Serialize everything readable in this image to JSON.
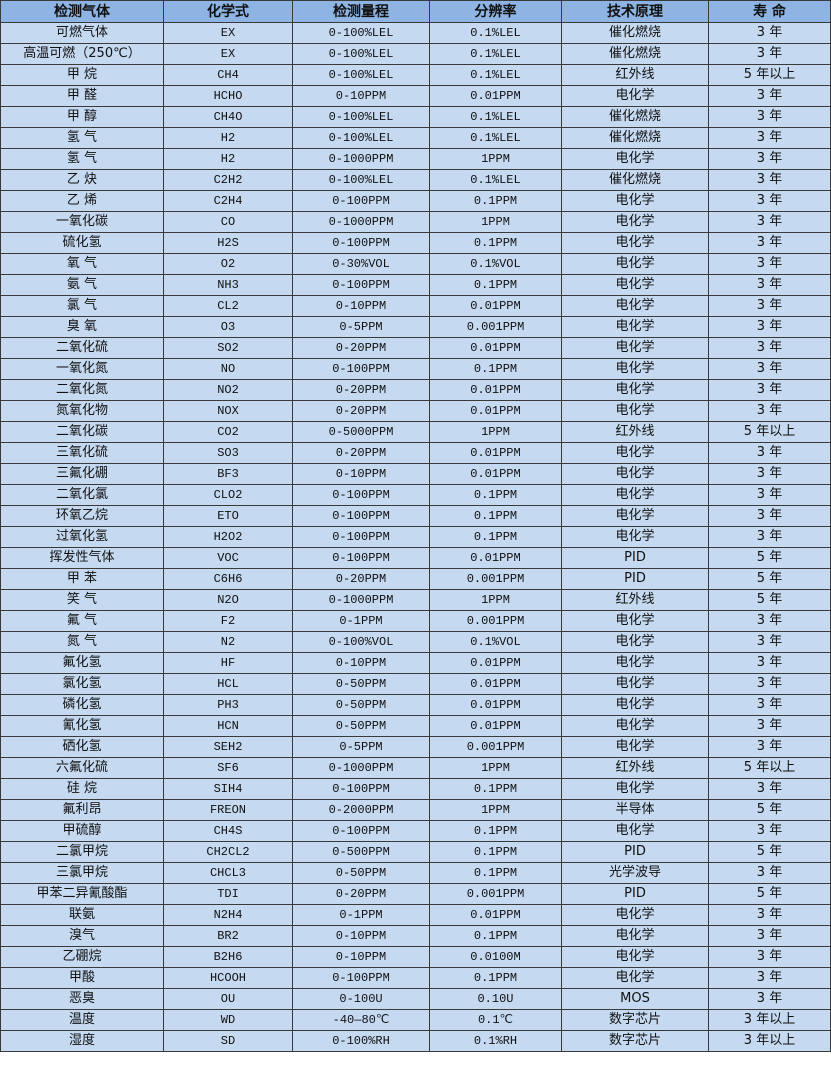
{
  "colors": {
    "header_bg": "#8db4e2",
    "row_bg": "#c5d9f1",
    "border": "#3a3a3a"
  },
  "table": {
    "headers": [
      "检测气体",
      "化学式",
      "检测量程",
      "分辨率",
      "技术原理",
      "寿 命"
    ],
    "rows": [
      [
        "可燃气体",
        "EX",
        "0-100%LEL",
        "0.1%LEL",
        "催化燃烧",
        "3 年"
      ],
      [
        "高温可燃（250℃）",
        "EX",
        "0-100%LEL",
        "0.1%LEL",
        "催化燃烧",
        "3 年"
      ],
      [
        "甲 烷",
        "CH4",
        "0-100%LEL",
        "0.1%LEL",
        "红外线",
        "5 年以上"
      ],
      [
        "甲 醛",
        "HCHO",
        "0-10PPM",
        "0.01PPM",
        "电化学",
        "3 年"
      ],
      [
        "甲 醇",
        "CH4O",
        "0-100%LEL",
        "0.1%LEL",
        "催化燃烧",
        "3 年"
      ],
      [
        "氢 气",
        "H2",
        "0-100%LEL",
        "0.1%LEL",
        "催化燃烧",
        "3 年"
      ],
      [
        "氢 气",
        "H2",
        "0-1000PPM",
        "1PPM",
        "电化学",
        "3 年"
      ],
      [
        "乙 炔",
        "C2H2",
        "0-100%LEL",
        "0.1%LEL",
        "催化燃烧",
        "3 年"
      ],
      [
        "乙 烯",
        "C2H4",
        "0-100PPM",
        "0.1PPM",
        "电化学",
        "3 年"
      ],
      [
        "一氧化碳",
        "CO",
        "0-1000PPM",
        "1PPM",
        "电化学",
        "3 年"
      ],
      [
        "硫化氢",
        "H2S",
        "0-100PPM",
        "0.1PPM",
        "电化学",
        "3 年"
      ],
      [
        "氧 气",
        "O2",
        "0-30%VOL",
        "0.1%VOL",
        "电化学",
        "3 年"
      ],
      [
        "氨 气",
        "NH3",
        "0-100PPM",
        "0.1PPM",
        "电化学",
        "3 年"
      ],
      [
        "氯 气",
        "CL2",
        "0-10PPM",
        "0.01PPM",
        "电化学",
        "3 年"
      ],
      [
        "臭 氧",
        "O3",
        "0-5PPM",
        "0.001PPM",
        "电化学",
        "3 年"
      ],
      [
        "二氧化硫",
        "SO2",
        "0-20PPM",
        "0.01PPM",
        "电化学",
        "3 年"
      ],
      [
        "一氧化氮",
        "NO",
        "0-100PPM",
        "0.1PPM",
        "电化学",
        "3 年"
      ],
      [
        "二氧化氮",
        "NO2",
        "0-20PPM",
        "0.01PPM",
        "电化学",
        "3 年"
      ],
      [
        "氮氧化物",
        "NOX",
        "0-20PPM",
        "0.01PPM",
        "电化学",
        "3 年"
      ],
      [
        "二氧化碳",
        "CO2",
        "0-5000PPM",
        "1PPM",
        "红外线",
        "5 年以上"
      ],
      [
        "三氧化硫",
        "SO3",
        "0-20PPM",
        "0.01PPM",
        "电化学",
        "3 年"
      ],
      [
        "三氟化硼",
        "BF3",
        "0-10PPM",
        "0.01PPM",
        "电化学",
        "3 年"
      ],
      [
        "二氧化氯",
        "CLO2",
        "0-100PPM",
        "0.1PPM",
        "电化学",
        "3 年"
      ],
      [
        "环氧乙烷",
        "ETO",
        "0-100PPM",
        "0.1PPM",
        "电化学",
        "3 年"
      ],
      [
        "过氧化氢",
        "H2O2",
        "0-100PPM",
        "0.1PPM",
        "电化学",
        "3 年"
      ],
      [
        "挥发性气体",
        "VOC",
        "0-100PPM",
        "0.01PPM",
        "PID",
        "5 年"
      ],
      [
        "甲 苯",
        "C6H6",
        "0-20PPM",
        "0.001PPM",
        "PID",
        "5 年"
      ],
      [
        "笑 气",
        "N2O",
        "0-1000PPM",
        "1PPM",
        "红外线",
        "5 年"
      ],
      [
        "氟 气",
        "F2",
        "0-1PPM",
        "0.001PPM",
        "电化学",
        "3 年"
      ],
      [
        "氮 气",
        "N2",
        "0-100%VOL",
        "0.1%VOL",
        "电化学",
        "3 年"
      ],
      [
        "氟化氢",
        "HF",
        "0-10PPM",
        "0.01PPM",
        "电化学",
        "3 年"
      ],
      [
        "氯化氢",
        "HCL",
        "0-50PPM",
        "0.01PPM",
        "电化学",
        "3 年"
      ],
      [
        "磷化氢",
        "PH3",
        "0-50PPM",
        "0.01PPM",
        "电化学",
        "3 年"
      ],
      [
        "氰化氢",
        "HCN",
        "0-50PPM",
        "0.01PPM",
        "电化学",
        "3 年"
      ],
      [
        "硒化氢",
        "SEH2",
        "0-5PPM",
        "0.001PPM",
        "电化学",
        "3 年"
      ],
      [
        "六氟化硫",
        "SF6",
        "0-1000PPM",
        "1PPM",
        "红外线",
        "5 年以上"
      ],
      [
        "硅 烷",
        "SIH4",
        "0-100PPM",
        "0.1PPM",
        "电化学",
        "3 年"
      ],
      [
        "氟利昂",
        "FREON",
        "0-2000PPM",
        "1PPM",
        "半导体",
        "5 年"
      ],
      [
        "甲硫醇",
        "CH4S",
        "0-100PPM",
        "0.1PPM",
        "电化学",
        "3 年"
      ],
      [
        "二氯甲烷",
        "CH2CL2",
        "0-500PPM",
        "0.1PPM",
        "PID",
        "5 年"
      ],
      [
        "三氯甲烷",
        "CHCL3",
        "0-50PPM",
        "0.1PPM",
        "光学波导",
        "3 年"
      ],
      [
        "甲苯二异氰酸酯",
        "TDI",
        "0-20PPM",
        "0.001PPM",
        "PID",
        "5 年"
      ],
      [
        "联氨",
        "N2H4",
        "0-1PPM",
        "0.01PPM",
        "电化学",
        "3 年"
      ],
      [
        "溴气",
        "BR2",
        "0-10PPM",
        "0.1PPM",
        "电化学",
        "3 年"
      ],
      [
        "乙硼烷",
        "B2H6",
        "0-10PPM",
        "0.0100M",
        "电化学",
        "3 年"
      ],
      [
        "甲酸",
        "HCOOH",
        "0-100PPM",
        "0.1PPM",
        "电化学",
        "3 年"
      ],
      [
        "恶臭",
        "OU",
        "0-100U",
        "0.10U",
        "MOS",
        "3 年"
      ],
      [
        "温度",
        "WD",
        "-40—80℃",
        "0.1℃",
        "数字芯片",
        "3 年以上"
      ],
      [
        "湿度",
        "SD",
        "0-100%RH",
        "0.1%RH",
        "数字芯片",
        "3 年以上"
      ]
    ]
  }
}
